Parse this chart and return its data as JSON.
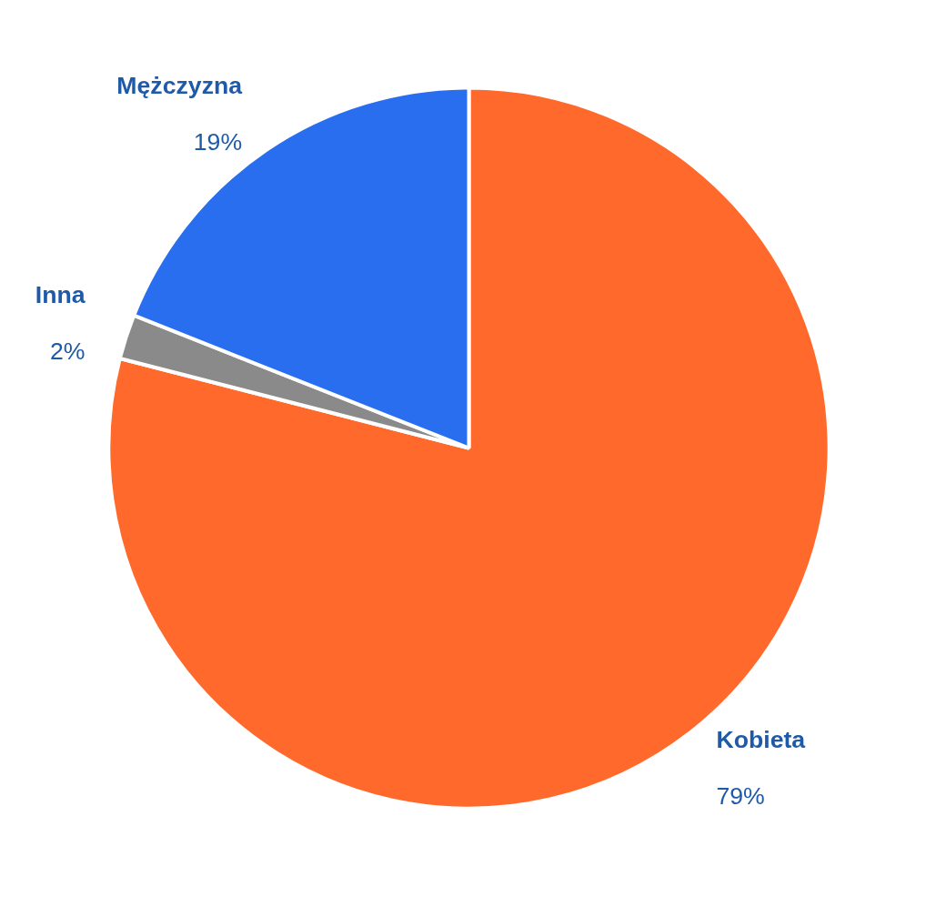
{
  "chart_data": {
    "type": "pie",
    "categories": [
      "Kobieta",
      "Inna",
      "Mężczyzna"
    ],
    "values": [
      79,
      2,
      19
    ],
    "colors": [
      "#ff6a2c",
      "#8a8a8a",
      "#2a6ef0"
    ],
    "value_labels": [
      "79%",
      "2%",
      "19%"
    ]
  }
}
